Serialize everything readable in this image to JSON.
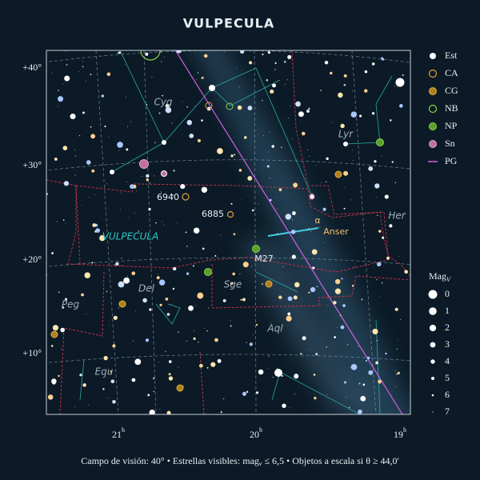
{
  "title": "VULPECULA",
  "legend": [
    "Est",
    "CA",
    "CG",
    "NB",
    "NP",
    "Sn",
    "PG"
  ],
  "magnitude_legend": {
    "title": {
      "text": "Mag",
      "sub": "V"
    },
    "values": [
      0,
      1,
      2,
      3,
      4,
      5,
      6,
      7
    ]
  },
  "dec_labels": [
    "+40°",
    "+30°",
    "+20°",
    "+10°"
  ],
  "ra_labels": [
    {
      "text": "21",
      "sup": "h"
    },
    {
      "text": "20",
      "sup": "h"
    },
    {
      "text": "19",
      "sup": "h"
    }
  ],
  "constellations": [
    "Cyg",
    "Lyr",
    "Her",
    "VULPECULA",
    "Del",
    "Sge",
    "Peg",
    "Aql",
    "Equ"
  ],
  "objects": [
    "6940",
    "6885",
    "M27",
    "α",
    "Anser"
  ],
  "footer": [
    "Campo de visión: 40°  •  Estrellas visibles: mag",
    "v",
    " ≤ 6,5  •  Objetos a escala si θ ≥ 44,0'"
  ]
}
